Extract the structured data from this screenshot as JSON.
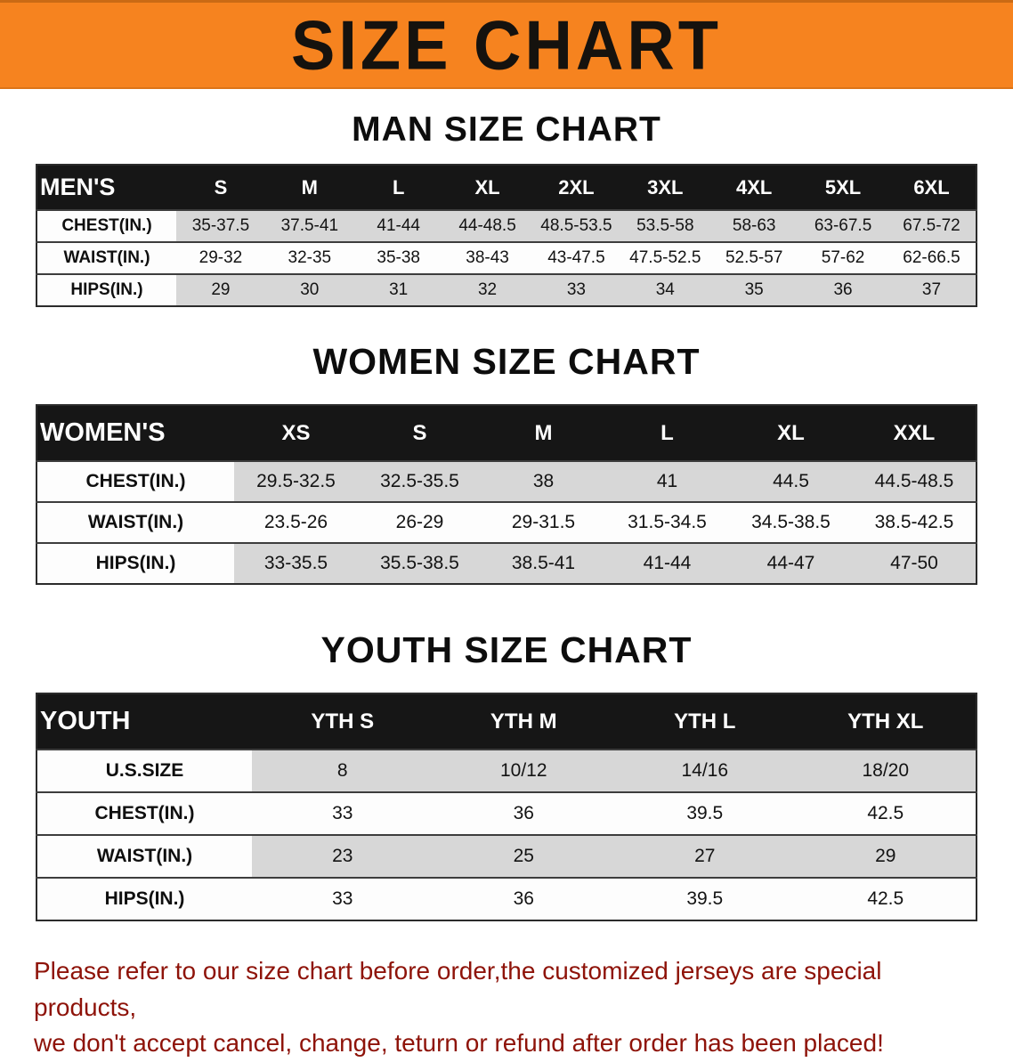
{
  "colors": {
    "banner_orange": "#f6831f",
    "table_header_black": "#161616",
    "row_shade": "#d7d7d7",
    "footer_red": "#8e1309"
  },
  "banner": {
    "title": "SIZE CHART"
  },
  "sections": [
    {
      "id": "men",
      "heading": "MAN SIZE CHART",
      "table": {
        "corner_label": "MEN'S",
        "columns": [
          "S",
          "M",
          "L",
          "XL",
          "2XL",
          "3XL",
          "4XL",
          "5XL",
          "6XL"
        ],
        "rows": [
          {
            "label": "CHEST(IN.)",
            "values": [
              "35-37.5",
              "37.5-41",
              "41-44",
              "44-48.5",
              "48.5-53.5",
              "53.5-58",
              "58-63",
              "63-67.5",
              "67.5-72"
            ]
          },
          {
            "label": "WAIST(IN.)",
            "values": [
              "29-32",
              "32-35",
              "35-38",
              "38-43",
              "43-47.5",
              "47.5-52.5",
              "52.5-57",
              "57-62",
              "62-66.5"
            ]
          },
          {
            "label": "HIPS(IN.)",
            "values": [
              "29",
              "30",
              "31",
              "32",
              "33",
              "34",
              "35",
              "36",
              "37"
            ]
          }
        ]
      }
    },
    {
      "id": "women",
      "heading": "WOMEN SIZE CHART",
      "table": {
        "corner_label": "WOMEN'S",
        "columns": [
          "XS",
          "S",
          "M",
          "L",
          "XL",
          "XXL"
        ],
        "rows": [
          {
            "label": "CHEST(IN.)",
            "values": [
              "29.5-32.5",
              "32.5-35.5",
              "38",
              "41",
              "44.5",
              "44.5-48.5"
            ]
          },
          {
            "label": "WAIST(IN.)",
            "values": [
              "23.5-26",
              "26-29",
              "29-31.5",
              "31.5-34.5",
              "34.5-38.5",
              "38.5-42.5"
            ]
          },
          {
            "label": "HIPS(IN.)",
            "values": [
              "33-35.5",
              "35.5-38.5",
              "38.5-41",
              "41-44",
              "44-47",
              "47-50"
            ]
          }
        ]
      }
    },
    {
      "id": "youth",
      "heading": "YOUTH SIZE CHART",
      "table": {
        "corner_label": "YOUTH",
        "columns": [
          "YTH S",
          "YTH M",
          "YTH L",
          "YTH XL"
        ],
        "rows": [
          {
            "label": "U.S.SIZE",
            "values": [
              "8",
              "10/12",
              "14/16",
              "18/20"
            ]
          },
          {
            "label": "CHEST(IN.)",
            "values": [
              "33",
              "36",
              "39.5",
              "42.5"
            ]
          },
          {
            "label": "WAIST(IN.)",
            "values": [
              "23",
              "25",
              "27",
              "29"
            ]
          },
          {
            "label": "HIPS(IN.)",
            "values": [
              "33",
              "36",
              "39.5",
              "42.5"
            ]
          }
        ]
      }
    }
  ],
  "footer": {
    "line1": "Please refer to our size chart before order,the customized jerseys are special products,",
    "line2": "we don't accept cancel, change, teturn or refund after order has been placed!"
  }
}
